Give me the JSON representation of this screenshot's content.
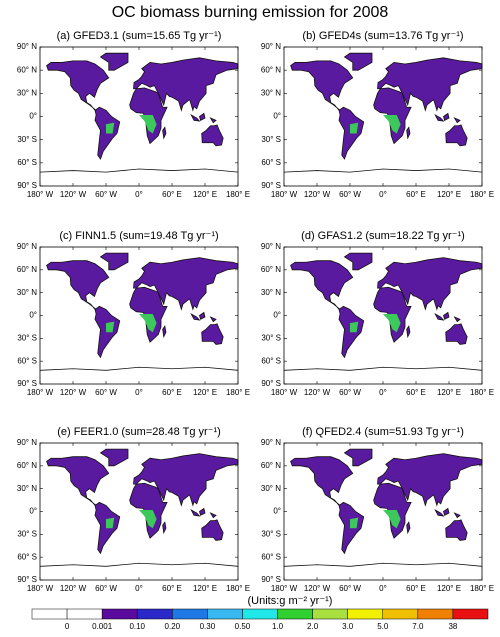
{
  "title": "OC biomass burning emission for 2008",
  "panels": [
    {
      "label": "(a) GFED3.1 (sum=15.65 Tg yr⁻¹)"
    },
    {
      "label": "(b) GFED4s (sum=13.76 Tg yr⁻¹)"
    },
    {
      "label": "(c) FINN1.5 (sum=19.48 Tg yr⁻¹)"
    },
    {
      "label": "(d) GFAS1.2 (sum=18.22 Tg yr⁻¹)"
    },
    {
      "label": "(e) FEER1.0 (sum=28.48 Tg yr⁻¹)"
    },
    {
      "label": "(f) QFED2.4 (sum=51.93 Tg yr⁻¹)"
    }
  ],
  "lat_labels": [
    "90° N",
    "60° N",
    "30° N",
    "0°",
    "30° S",
    "60° S",
    "90° S"
  ],
  "lon_labels": [
    "180° W",
    "120° W",
    "60° W",
    "0°",
    "60° E",
    "120° E",
    "180° E"
  ],
  "units": "(Units:g m⁻² yr⁻¹)",
  "colorbar": {
    "labels": [
      "0",
      "0.001",
      "0.10",
      "0.20",
      "0.30",
      "0.50",
      "1.0",
      "2.0",
      "3.0",
      "5.0",
      "7.0",
      "38"
    ],
    "colors": [
      "#ffffff",
      "#ffffff",
      "#5a0a9c",
      "#2a28c8",
      "#1e78e6",
      "#38b8f0",
      "#20e8e8",
      "#30d030",
      "#a8e040",
      "#f0f000",
      "#f0c000",
      "#f08000",
      "#e81010"
    ]
  }
}
